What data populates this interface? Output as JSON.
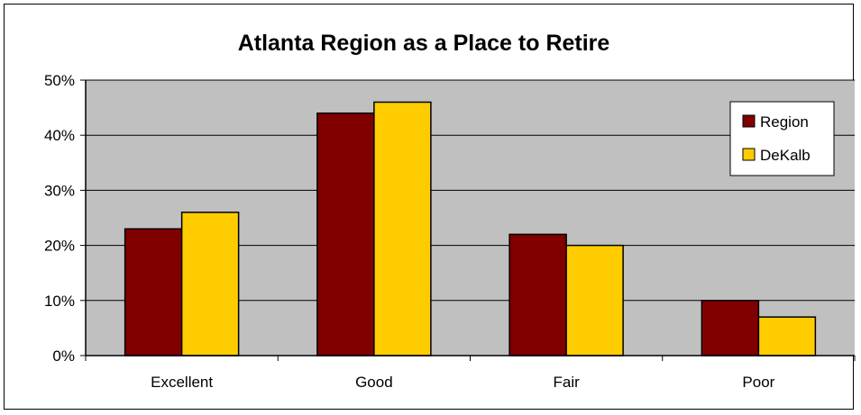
{
  "chart_data": {
    "type": "bar",
    "title": "Atlanta Region as a Place to Retire",
    "xlabel": "",
    "ylabel": "",
    "categories": [
      "Excellent",
      "Good",
      "Fair",
      "Poor"
    ],
    "series": [
      {
        "name": "Region",
        "values": [
          23,
          44,
          22,
          10
        ],
        "color": "#800000"
      },
      {
        "name": "DeKalb",
        "values": [
          26,
          46,
          20,
          7
        ],
        "color": "#FFCC00"
      }
    ],
    "ylim": [
      0,
      50
    ],
    "yticks": [
      0,
      10,
      20,
      30,
      40,
      50
    ],
    "ytick_labels": [
      "0%",
      "10%",
      "20%",
      "30%",
      "40%",
      "50%"
    ],
    "grid": true,
    "plot_background": "#C0C0C0",
    "legend_position": "top-right"
  }
}
